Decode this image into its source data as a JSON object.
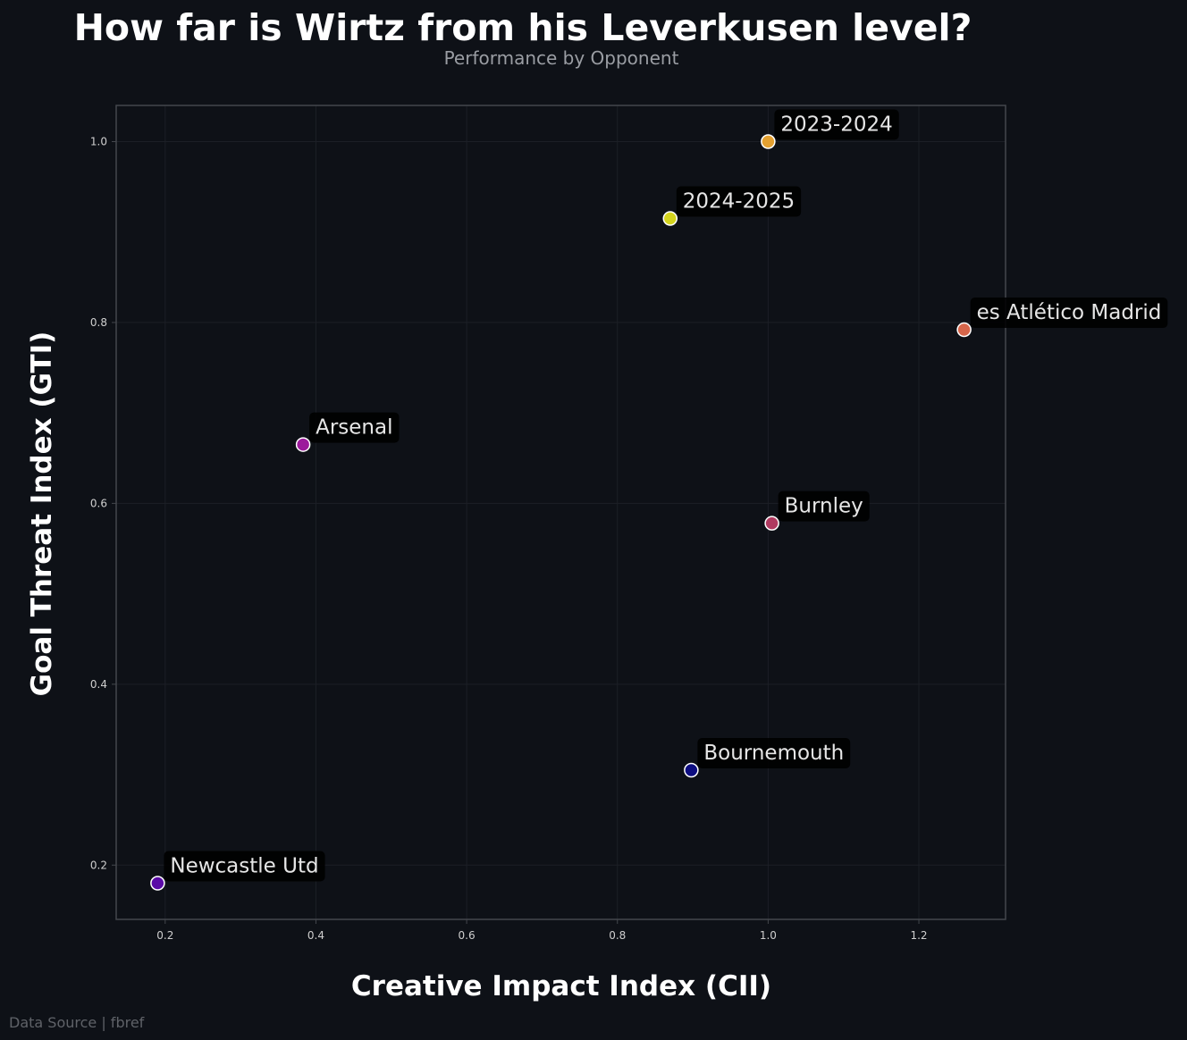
{
  "chart_data": {
    "type": "scatter",
    "title": "How far is Wirtz from his Leverkusen level?",
    "subtitle": "Performance by Opponent",
    "xlabel": "Creative Impact Index (CII)",
    "ylabel": "Goal Threat Index (GTI)",
    "xlim": [
      0.135,
      1.315
    ],
    "ylim": [
      0.14,
      1.04
    ],
    "xticks": [
      0.2,
      0.4,
      0.6,
      0.8,
      1.0,
      1.2
    ],
    "yticks": [
      0.2,
      0.4,
      0.6,
      0.8,
      1.0
    ],
    "grid": true,
    "points": [
      {
        "label": "2023-2024",
        "x": 1.0,
        "y": 1.0,
        "color": "#e3a030"
      },
      {
        "label": "2024-2025",
        "x": 0.87,
        "y": 0.915,
        "color": "#d4d41e"
      },
      {
        "label": "es Atlético Madrid",
        "x": 1.26,
        "y": 0.792,
        "color": "#d6654a"
      },
      {
        "label": "Arsenal",
        "x": 0.383,
        "y": 0.665,
        "color": "#9c1a9c"
      },
      {
        "label": "Burnley",
        "x": 1.005,
        "y": 0.578,
        "color": "#b03a60"
      },
      {
        "label": "Bournemouth",
        "x": 0.898,
        "y": 0.305,
        "color": "#0d0d80"
      },
      {
        "label": "Newcastle Utd",
        "x": 0.19,
        "y": 0.18,
        "color": "#5a0aa6"
      }
    ]
  },
  "footer": {
    "source": "Data Source | fbref"
  },
  "colors": {
    "background": "#0e1117",
    "grid": "#1c1f26",
    "axis": "#44474d",
    "tick_label": "#cfcfcf",
    "label_box": "#000000"
  }
}
